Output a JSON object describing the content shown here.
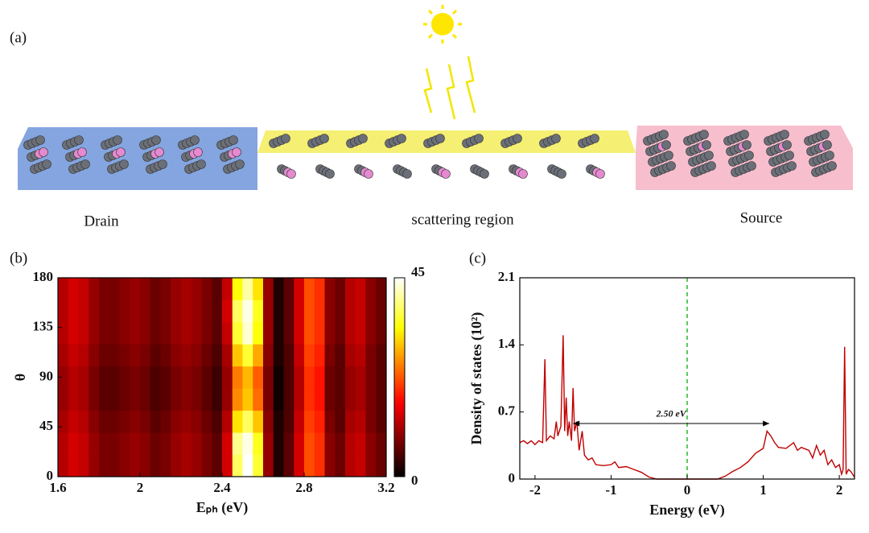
{
  "panel_labels": [
    "(a)",
    "(b)",
    "(c)"
  ],
  "diagram": {
    "labels": [
      "Drain",
      "scattering region",
      "Source"
    ]
  },
  "chart_data": [
    {
      "type": "heatmap",
      "xlabel": "Eₚₕ (eV)",
      "ylabel": "θ",
      "colormap": "hot",
      "x": [
        1.625,
        1.675,
        1.725,
        1.775,
        1.825,
        1.875,
        1.925,
        1.975,
        2.025,
        2.075,
        2.125,
        2.175,
        2.225,
        2.275,
        2.325,
        2.375,
        2.425,
        2.475,
        2.525,
        2.575,
        2.625,
        2.675,
        2.725,
        2.775,
        2.825,
        2.875,
        2.925,
        2.975,
        3.025,
        3.075,
        3.125,
        3.175
      ],
      "y": [
        10,
        30,
        50,
        70,
        90,
        110,
        130,
        150,
        170
      ],
      "values": [
        [
          12,
          14,
          13,
          10,
          8,
          8,
          9,
          10,
          9,
          7,
          8,
          10,
          11,
          10,
          8,
          6,
          14,
          38,
          45,
          36,
          10,
          2,
          6,
          14,
          22,
          20,
          9,
          7,
          12,
          13,
          9,
          7
        ],
        [
          12,
          14,
          13,
          10,
          8,
          8,
          9,
          10,
          9,
          7,
          8,
          10,
          11,
          10,
          8,
          6,
          14,
          40,
          44,
          35,
          10,
          2,
          6,
          14,
          22,
          20,
          9,
          7,
          12,
          13,
          9,
          7
        ],
        [
          11,
          13,
          12,
          9,
          7,
          7,
          8,
          9,
          8,
          6,
          7,
          9,
          10,
          9,
          7,
          5,
          12,
          32,
          38,
          30,
          9,
          2,
          5,
          13,
          21,
          19,
          8,
          6,
          11,
          12,
          8,
          6
        ],
        [
          10,
          12,
          11,
          8,
          6,
          6,
          7,
          8,
          7,
          5,
          6,
          8,
          9,
          8,
          6,
          4,
          10,
          26,
          30,
          24,
          8,
          1,
          5,
          12,
          20,
          18,
          7,
          6,
          10,
          11,
          8,
          6
        ],
        [
          10,
          12,
          11,
          8,
          6,
          6,
          7,
          8,
          7,
          5,
          6,
          8,
          9,
          8,
          6,
          4,
          10,
          25,
          29,
          23,
          8,
          1,
          5,
          12,
          20,
          18,
          7,
          6,
          10,
          11,
          8,
          6
        ],
        [
          11,
          13,
          12,
          9,
          7,
          7,
          8,
          9,
          8,
          6,
          7,
          9,
          10,
          9,
          7,
          5,
          11,
          30,
          36,
          28,
          9,
          2,
          5,
          13,
          21,
          19,
          8,
          6,
          11,
          12,
          8,
          6
        ],
        [
          12,
          14,
          13,
          10,
          8,
          8,
          9,
          10,
          9,
          7,
          8,
          10,
          11,
          10,
          8,
          6,
          13,
          36,
          43,
          34,
          10,
          2,
          6,
          14,
          22,
          20,
          9,
          7,
          12,
          13,
          9,
          7
        ],
        [
          12,
          14,
          13,
          10,
          8,
          8,
          9,
          10,
          9,
          7,
          8,
          10,
          11,
          10,
          8,
          6,
          14,
          38,
          44,
          35,
          10,
          2,
          6,
          14,
          22,
          20,
          9,
          7,
          12,
          13,
          9,
          7
        ],
        [
          12,
          14,
          13,
          10,
          8,
          8,
          9,
          10,
          9,
          7,
          8,
          10,
          11,
          10,
          8,
          6,
          13,
          34,
          41,
          32,
          10,
          2,
          6,
          14,
          22,
          20,
          9,
          7,
          12,
          13,
          9,
          7
        ]
      ],
      "xlim": [
        1.6,
        3.2
      ],
      "xticks": [
        1.6,
        2,
        2.4,
        2.8,
        3.2
      ],
      "ylim": [
        0,
        180
      ],
      "yticks": [
        0,
        45,
        90,
        135,
        180
      ],
      "clim": [
        0,
        45
      ],
      "cticks": [
        0,
        45
      ]
    },
    {
      "type": "line",
      "xlabel": "Energy (eV)",
      "ylabel": "Density of states (10²)",
      "x": [
        -2.2,
        -2.15,
        -2.1,
        -2.05,
        -2.0,
        -1.95,
        -1.9,
        -1.87,
        -1.85,
        -1.8,
        -1.75,
        -1.72,
        -1.7,
        -1.66,
        -1.63,
        -1.61,
        -1.59,
        -1.57,
        -1.55,
        -1.52,
        -1.5,
        -1.48,
        -1.45,
        -1.42,
        -1.38,
        -1.35,
        -1.3,
        -1.25,
        -1.2,
        -1.1,
        -1.0,
        -0.95,
        -0.9,
        -0.8,
        -0.7,
        -0.6,
        -0.5,
        -0.4,
        -0.2,
        0,
        0.2,
        0.4,
        0.5,
        0.6,
        0.7,
        0.8,
        0.9,
        1.0,
        1.05,
        1.1,
        1.15,
        1.2,
        1.3,
        1.4,
        1.45,
        1.5,
        1.6,
        1.65,
        1.7,
        1.75,
        1.8,
        1.85,
        1.9,
        1.95,
        2.0,
        2.03,
        2.05,
        2.07,
        2.09,
        2.12,
        2.15,
        2.2
      ],
      "series": [
        {
          "color": "#c00000",
          "values": [
            0.38,
            0.4,
            0.37,
            0.4,
            0.36,
            0.4,
            0.38,
            1.25,
            0.4,
            0.45,
            0.42,
            0.6,
            0.45,
            0.55,
            1.5,
            0.5,
            0.85,
            0.45,
            0.6,
            0.4,
            0.95,
            0.5,
            0.6,
            0.3,
            0.5,
            0.25,
            0.2,
            0.22,
            0.15,
            0.14,
            0.15,
            0.18,
            0.12,
            0.13,
            0.1,
            0.07,
            0.02,
            0,
            0,
            0,
            0,
            0,
            0.03,
            0.08,
            0.12,
            0.18,
            0.27,
            0.32,
            0.5,
            0.45,
            0.38,
            0.33,
            0.32,
            0.38,
            0.3,
            0.33,
            0.3,
            0.22,
            0.35,
            0.25,
            0.3,
            0.15,
            0.2,
            0.12,
            0.15,
            0.05,
            0.1,
            1.38,
            0.05,
            0.1,
            0.08,
            0.02
          ]
        }
      ],
      "vline": 0,
      "vline_color": "#22bb22",
      "annotation": {
        "text": "2.50 eV",
        "x": [
          -1.5,
          1.08
        ],
        "y": 0.58
      },
      "xlim": [
        -2.2,
        2.2
      ],
      "xticks": [
        -2,
        -1,
        0,
        1,
        2
      ],
      "ylim": [
        0,
        2.1
      ],
      "yticks": [
        0,
        0.7,
        1.4,
        2.1
      ]
    }
  ]
}
